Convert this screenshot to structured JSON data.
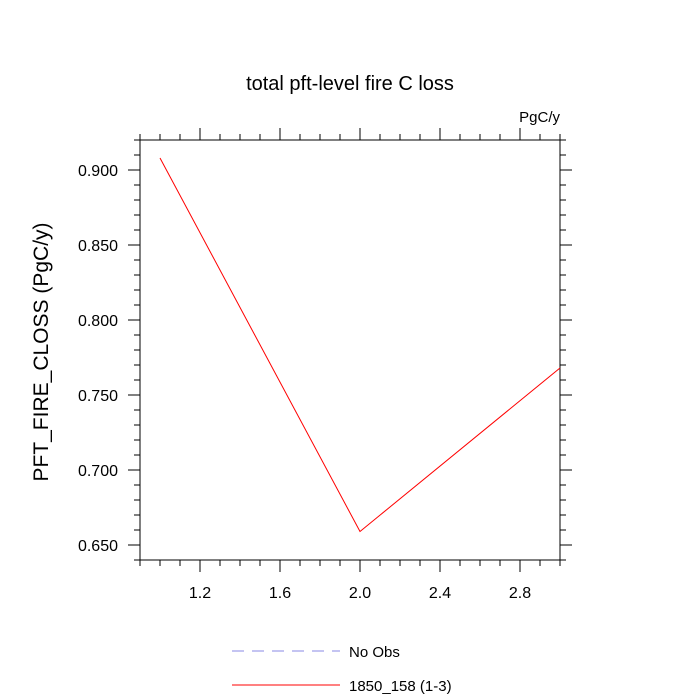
{
  "chart_data": {
    "type": "line",
    "title": "total pft-level fire C loss",
    "units_label": "PgC/y",
    "ylabel": "PFT_FIRE_CLOSS  (PgC/y)",
    "xlabel": "",
    "xlim": [
      0.9,
      3.0
    ],
    "ylim": [
      0.64,
      0.92
    ],
    "xticks": [
      1.2,
      1.6,
      2.0,
      2.4,
      2.8
    ],
    "xtick_labels": [
      "1.2",
      "1.6",
      "2.0",
      "2.4",
      "2.8"
    ],
    "yticks": [
      0.65,
      0.7,
      0.75,
      0.8,
      0.85,
      0.9
    ],
    "ytick_labels": [
      "0.650",
      "0.700",
      "0.750",
      "0.800",
      "0.850",
      "0.900"
    ],
    "grid": false,
    "legend_position": "bottom",
    "series": [
      {
        "name": "No Obs",
        "color": "#8a8ae6",
        "style": "dashed",
        "x": [],
        "y": []
      },
      {
        "name": "1850_158 (1-3)",
        "color": "#ff0000",
        "style": "solid",
        "x": [
          1.0,
          2.0,
          3.0
        ],
        "y": [
          0.908,
          0.659,
          0.768
        ]
      }
    ]
  }
}
